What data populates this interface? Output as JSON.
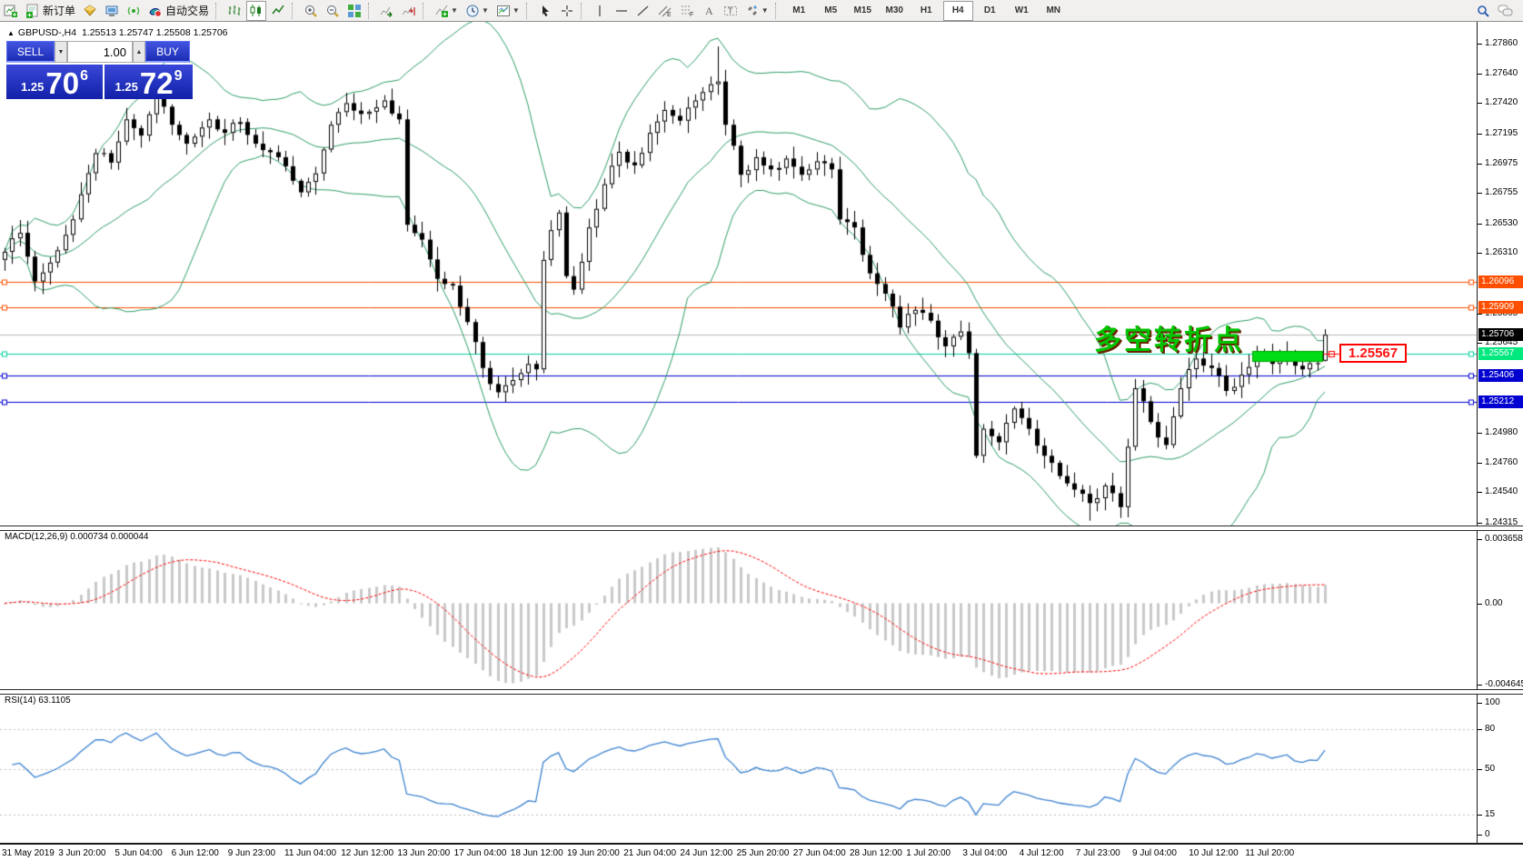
{
  "toolbar": {
    "items": [
      {
        "icon": "new-chart-icon"
      },
      {
        "icon": "new-order-icon",
        "label": "新订单"
      },
      {
        "icon": "market-watch-icon"
      },
      {
        "icon": "terminal-icon"
      },
      {
        "icon": "signal-icon"
      },
      {
        "icon": "autotrade-icon",
        "label": "自动交易"
      },
      {
        "sep": true
      },
      {
        "icon": "bar-chart-icon"
      },
      {
        "icon": "candlestick-icon",
        "pressed": true
      },
      {
        "icon": "line-chart-icon"
      },
      {
        "sep": true
      },
      {
        "icon": "zoom-in-icon"
      },
      {
        "icon": "zoom-out-icon"
      },
      {
        "icon": "tile-windows-icon"
      },
      {
        "sep": true
      },
      {
        "icon": "auto-scroll-icon"
      },
      {
        "icon": "chart-shift-icon"
      },
      {
        "sep": true
      },
      {
        "icon": "indicators-icon",
        "caret": true
      },
      {
        "icon": "periods-icon",
        "caret": true
      },
      {
        "icon": "template-icon",
        "caret": true
      },
      {
        "sep": true
      },
      {
        "icon": "cursor-icon"
      },
      {
        "icon": "crosshair-icon"
      },
      {
        "sep": true
      },
      {
        "icon": "vertical-line-icon"
      },
      {
        "icon": "horizontal-line-icon"
      },
      {
        "icon": "trendline-icon"
      },
      {
        "icon": "channel-icon"
      },
      {
        "icon": "fibonacci-icon"
      },
      {
        "icon": "text-icon"
      },
      {
        "icon": "text-label-icon"
      },
      {
        "icon": "arrows-icon",
        "caret": true
      },
      {
        "sep": true
      }
    ],
    "timeframes": [
      "M1",
      "M5",
      "M15",
      "M30",
      "H1",
      "H4",
      "D1",
      "W1",
      "MN"
    ],
    "active_timeframe": "H4",
    "right_icons": [
      "search-icon",
      "chat-icon"
    ]
  },
  "chart": {
    "title_symbol": "GBPUSD-,H4",
    "title_ohlc": "1.25513 1.25747 1.25508 1.25706",
    "annotation": "多空转折点",
    "callout_price": "1.25567"
  },
  "trade_panel": {
    "sell_label": "SELL",
    "buy_label": "BUY",
    "volume": "1.00",
    "spin_down": "▼",
    "spin_up": "▲",
    "sell_price": {
      "small": "1.25",
      "big": "70",
      "sup": "6"
    },
    "buy_price": {
      "small": "1.25",
      "big": "72",
      "sup": "9"
    }
  },
  "price_axis": {
    "ticks": [
      "1.27860",
      "1.27640",
      "1.27420",
      "1.27195",
      "1.26975",
      "1.26755",
      "1.26530",
      "1.26310",
      "1.25865",
      "1.25645",
      "1.24980",
      "1.24760",
      "1.24540",
      "1.24315"
    ],
    "lines": [
      {
        "label": "1.26096",
        "price": 1.26096,
        "color": "#FF4E00",
        "handles": true
      },
      {
        "label": "1.25909",
        "price": 1.25909,
        "color": "#FF4E00",
        "handles": true
      },
      {
        "label": "1.25706",
        "price": 1.25706,
        "color": "#000000",
        "line_color": "#B8B8B8",
        "current": true
      },
      {
        "label": "1.25567",
        "price": 1.25567,
        "color": "#00E87E",
        "line_color": "#00D2A0",
        "handles": true
      },
      {
        "label": "1.25406",
        "price": 1.25406,
        "color": "#0000D0",
        "handles": true
      },
      {
        "label": "1.25212",
        "price": 1.25212,
        "color": "#0000D0",
        "handles": true
      }
    ]
  },
  "macd_panel": {
    "label": "MACD(12,26,9) 0.000734 0.000044",
    "axis": [
      {
        "label": "0.003658",
        "value": 0.003658
      },
      {
        "label": "0.00",
        "value": 0
      },
      {
        "label": "-0.004645",
        "value": -0.004645
      }
    ],
    "params": {
      "fast": 12,
      "slow": 26,
      "signal": 9
    },
    "hist_color": "#c9c9c9",
    "signal_color": "#ff0000"
  },
  "rsi_panel": {
    "label": "RSI(14) 63.1105",
    "period": 14,
    "last_value": 63.1105,
    "axis": [
      {
        "label": "100",
        "value": 100
      },
      {
        "label": "80",
        "value": 80,
        "dashed": true
      },
      {
        "label": "50",
        "value": 50,
        "dashed": true
      },
      {
        "label": "15",
        "value": 15,
        "dashed": true
      },
      {
        "label": "0",
        "value": 0
      }
    ],
    "line_color": "#3B82D0"
  },
  "time_axis": [
    "31 May 2019",
    "3 Jun 20:00",
    "5 Jun 04:00",
    "6 Jun 12:00",
    "9 Jun 23:00",
    "11 Jun 04:00",
    "12 Jun 12:00",
    "13 Jun 20:00",
    "17 Jun 04:00",
    "18 Jun 12:00",
    "19 Jun 20:00",
    "21 Jun 04:00",
    "24 Jun 12:00",
    "25 Jun 20:00",
    "27 Jun 04:00",
    "28 Jun 12:00",
    "1 Jul 20:00",
    "3 Jul 04:00",
    "4 Jul 12:00",
    "7 Jul 23:00",
    "9 Jul 04:00",
    "10 Jul 12:00",
    "11 Jul 20:00"
  ],
  "chart_data": {
    "type": "candlestick",
    "symbol": "GBPUSD-",
    "timeframe": "H4",
    "last_candle": {
      "open": 1.25513,
      "high": 1.25747,
      "low": 1.25508,
      "close": 1.25706
    },
    "bid": 1.25706,
    "ask": 1.25729,
    "ylim": [
      1.24294,
      1.28022
    ],
    "bars_total": 175,
    "bollinger": {
      "period": 20,
      "deviation": 2,
      "color": "#2E9E68"
    },
    "close_anchors": [
      [
        0,
        1.2632
      ],
      [
        2,
        1.2646
      ],
      [
        4,
        1.261
      ],
      [
        6,
        1.2624
      ],
      [
        9,
        1.2656
      ],
      [
        12,
        1.2705
      ],
      [
        14,
        1.2698
      ],
      [
        16,
        1.273
      ],
      [
        18,
        1.2718
      ],
      [
        20,
        1.2752
      ],
      [
        22,
        1.2726
      ],
      [
        24,
        1.2712
      ],
      [
        27,
        1.273
      ],
      [
        29,
        1.272
      ],
      [
        31,
        1.2728
      ],
      [
        33,
        1.2712
      ],
      [
        36,
        1.2702
      ],
      [
        39,
        1.2676
      ],
      [
        41,
        1.269
      ],
      [
        43,
        1.2726
      ],
      [
        45,
        1.2742
      ],
      [
        47,
        1.2734
      ],
      [
        50,
        1.2744
      ],
      [
        52,
        1.273
      ],
      [
        53,
        1.2652
      ],
      [
        55,
        1.2641
      ],
      [
        57,
        1.2612
      ],
      [
        59,
        1.2607
      ],
      [
        61,
        1.258
      ],
      [
        63,
        1.2546
      ],
      [
        65,
        1.2528
      ],
      [
        67,
        1.2537
      ],
      [
        69,
        1.2549
      ],
      [
        70,
        1.2545
      ],
      [
        71,
        1.2626
      ],
      [
        72,
        1.2648
      ],
      [
        73,
        1.2661
      ],
      [
        74,
        1.2614
      ],
      [
        75,
        1.2604
      ],
      [
        77,
        1.265
      ],
      [
        79,
        1.2682
      ],
      [
        81,
        1.2706
      ],
      [
        83,
        1.2696
      ],
      [
        85,
        1.272
      ],
      [
        87,
        1.2737
      ],
      [
        89,
        1.2729
      ],
      [
        91,
        1.2744
      ],
      [
        93,
        1.2756
      ],
      [
        94,
        1.2758
      ],
      [
        95,
        1.2726
      ],
      [
        97,
        1.2689
      ],
      [
        99,
        1.2702
      ],
      [
        101,
        1.2693
      ],
      [
        103,
        1.2701
      ],
      [
        105,
        1.2689
      ],
      [
        107,
        1.2699
      ],
      [
        109,
        1.2693
      ],
      [
        110,
        1.2656
      ],
      [
        112,
        1.265
      ],
      [
        114,
        1.2616
      ],
      [
        116,
        1.2601
      ],
      [
        118,
        1.2576
      ],
      [
        120,
        1.2589
      ],
      [
        122,
        1.2581
      ],
      [
        124,
        1.2562
      ],
      [
        126,
        1.2573
      ],
      [
        127,
        1.2557
      ],
      [
        128,
        1.2481
      ],
      [
        129,
        1.2501
      ],
      [
        131,
        1.2491
      ],
      [
        133,
        1.2516
      ],
      [
        135,
        1.2501
      ],
      [
        137,
        1.2481
      ],
      [
        139,
        1.2466
      ],
      [
        141,
        1.2456
      ],
      [
        143,
        1.2446
      ],
      [
        145,
        1.2459
      ],
      [
        147,
        1.2443
      ],
      [
        149,
        1.2531
      ],
      [
        151,
        1.2506
      ],
      [
        153,
        1.2489
      ],
      [
        155,
        1.2531
      ],
      [
        157,
        1.2553
      ],
      [
        159,
        1.2546
      ],
      [
        161,
        1.2529
      ],
      [
        163,
        1.2541
      ],
      [
        165,
        1.2557
      ],
      [
        167,
        1.2549
      ],
      [
        169,
        1.2557
      ],
      [
        171,
        1.2545
      ],
      [
        173,
        1.2549
      ],
      [
        174,
        1.25706
      ]
    ],
    "wick_overrides": {
      "20": {
        "h": 1.2764
      },
      "50": {
        "h": 1.2748
      },
      "71": {
        "l": 1.2542
      },
      "94": {
        "h": 1.2784
      },
      "143": {
        "l": 1.2433
      },
      "147": {
        "l": 1.2435
      },
      "174": {
        "o": 1.25513,
        "h": 1.25747,
        "l": 1.25508,
        "c": 1.25706
      }
    },
    "highlight_rect": {
      "x_from": 1378,
      "x_to": 1456,
      "price_top": 1.25586,
      "price_bottom": 1.25505,
      "color": "#00DC16"
    }
  }
}
